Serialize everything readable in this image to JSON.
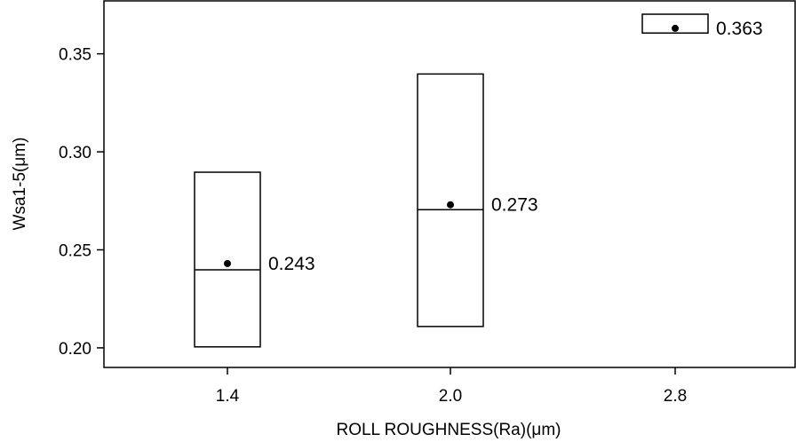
{
  "chart_data": {
    "type": "box",
    "title": "",
    "xlabel": "ROLL ROUGHNESS(Ra)(μm)",
    "ylabel": "Wsa1-5(μm)",
    "categories": [
      "1.4",
      "2.0",
      "2.8"
    ],
    "ylim": [
      0.19,
      0.377
    ],
    "yticks": [
      "0.20",
      "0.25",
      "0.30",
      "0.35"
    ],
    "ytick_values": [
      0.2,
      0.25,
      0.3,
      0.35
    ],
    "grid": false,
    "legend": "none",
    "boxes": [
      {
        "category": "1.4",
        "q1": 0.2005,
        "median": 0.2398,
        "q3": 0.2896,
        "mean": 0.243,
        "mean_label": "0.243"
      },
      {
        "category": "2.0",
        "q1": 0.2109,
        "median": 0.2705,
        "q3": 0.3397,
        "mean": 0.273,
        "mean_label": "0.273"
      },
      {
        "category": "2.8",
        "q1": 0.3606,
        "median": 0.3606,
        "q3": 0.3702,
        "mean": 0.363,
        "mean_label": "0.363"
      }
    ],
    "colors": {
      "box_stroke": "#000000",
      "mean_marker": "#000000"
    }
  }
}
